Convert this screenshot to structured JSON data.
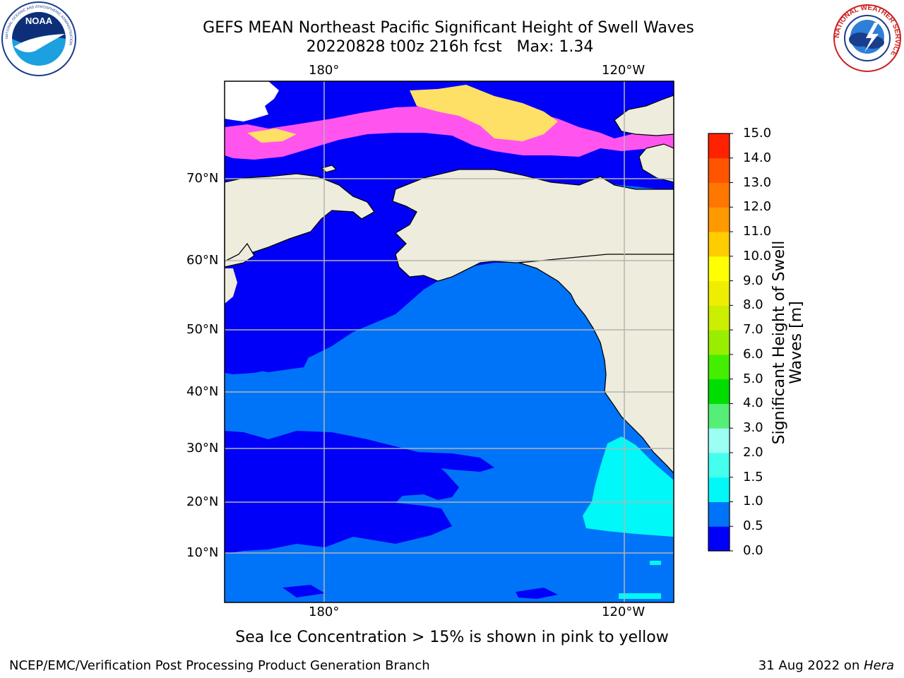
{
  "title": {
    "line1": "GEFS MEAN Northeast Pacific Significant Height of Swell Waves",
    "line2": "20220828 t00z 216h fcst   Max: 1.34"
  },
  "map": {
    "lon_labels": [
      "180°",
      "120°W"
    ],
    "lat_labels": [
      "70°N",
      "60°N",
      "50°N",
      "40°N",
      "30°N",
      "20°N",
      "10°N"
    ],
    "colors": {
      "land": "#eeecdc",
      "ocean_0_05": "#0000f8",
      "ocean_05_10": "#0074f8",
      "ocean_10_15": "#00f8f8",
      "ice_white": "#ffffff",
      "ice_pink": "#ff55ee",
      "ice_yellow": "#ffe066",
      "grid": "#b4b4b4"
    }
  },
  "colorbar": {
    "title_line1": "Significant Height of Swell",
    "title_line2": "Waves [m]",
    "ticks": [
      "0.0",
      "0.5",
      "1.0",
      "1.5",
      "2.0",
      "3.0",
      "4.0",
      "5.0",
      "6.0",
      "7.0",
      "8.0",
      "9.0",
      "10.0",
      "11.0",
      "12.0",
      "13.0",
      "14.0",
      "15.0"
    ],
    "colors": [
      "#0000f8",
      "#0074f8",
      "#00f8f8",
      "#44ffee",
      "#9cfff4",
      "#55ee77",
      "#00dd00",
      "#44ee00",
      "#99ee00",
      "#ccee00",
      "#eeee00",
      "#ffff00",
      "#ffcc00",
      "#ff9900",
      "#ff7700",
      "#ff5500",
      "#ff2200"
    ]
  },
  "caption": "Sea Ice Concentration > 15% is shown in pink to yellow",
  "footer": {
    "left": "NCEP/EMC/Verification Post Processing Product Generation Branch",
    "right_prefix": "31 Aug 2022 on ",
    "right_italic": "Hera"
  },
  "logos": {
    "noaa_text": "NOAA",
    "noaa_ring_text": "NATIONAL OCEANIC AND ATMOSPHERIC ADMINISTRATION",
    "nws_ring_text": "NATIONAL WEATHER SERVICE"
  }
}
